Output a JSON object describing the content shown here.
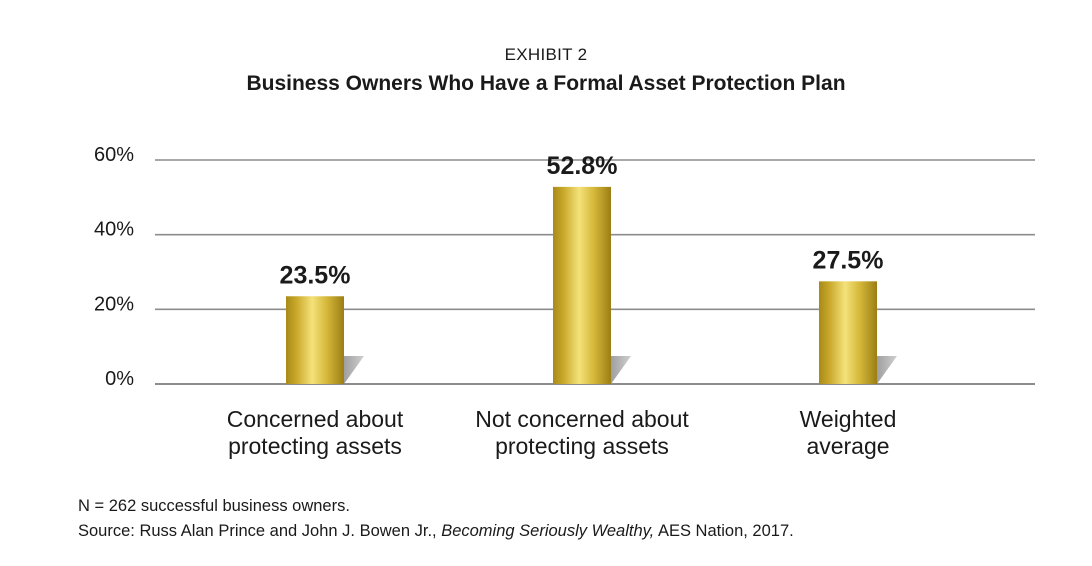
{
  "chart_data": {
    "type": "bar",
    "supertitle": "EXHIBIT 2",
    "title": "Business Owners Who Have a Formal Asset Protection Plan",
    "categories": [
      [
        "Concerned about",
        "protecting assets"
      ],
      [
        "Not concerned about",
        "protecting assets"
      ],
      [
        "Weighted",
        "average"
      ]
    ],
    "values": [
      23.5,
      52.8,
      27.5
    ],
    "data_labels": [
      "23.5%",
      "52.8%",
      "27.5%"
    ],
    "ylim": [
      0,
      60
    ],
    "yticks": [
      0,
      20,
      40,
      60
    ],
    "ytick_labels": [
      "0%",
      "20%",
      "40%",
      "60%"
    ],
    "grid": true,
    "bar_color": "#d4b22e",
    "grid_color": "#8c8c8c"
  },
  "footer": {
    "note": "N = 262 successful business owners.",
    "source_prefix": "Source: Russ Alan Prince and John J. Bowen Jr., ",
    "source_title": "Becoming Seriously Wealthy,",
    "source_suffix": " AES Nation, 2017."
  }
}
